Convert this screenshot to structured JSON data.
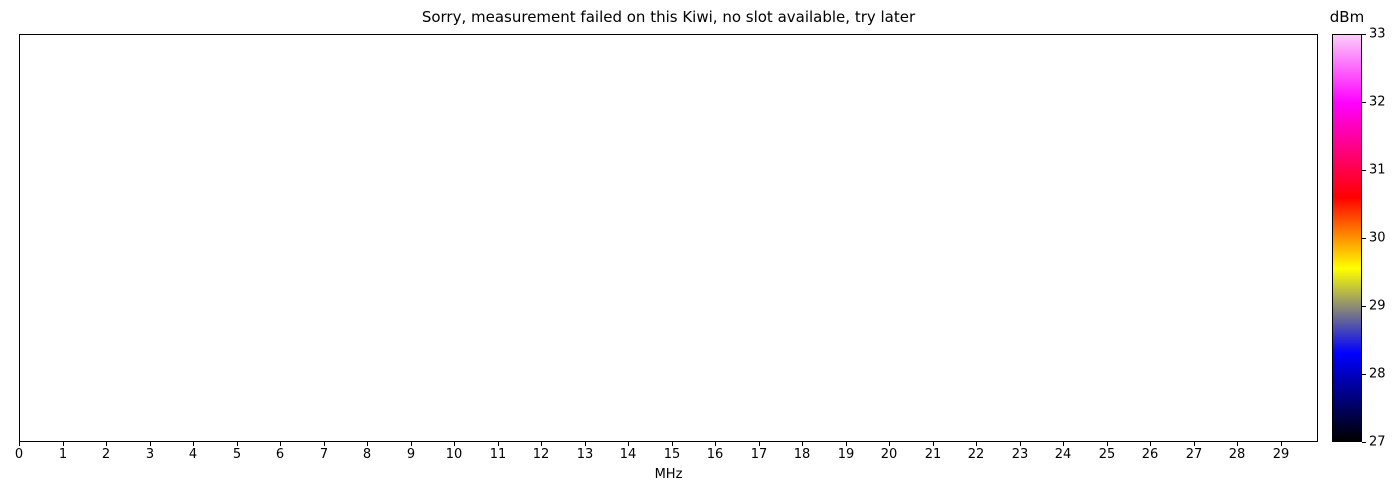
{
  "title": "Sorry, measurement failed on this Kiwi, no slot available, try later",
  "chart_data": {
    "type": "heatmap",
    "status": "empty plot area - measurement failed, no data rendered",
    "xlabel": "MHz",
    "x_ticks": [
      0,
      1,
      2,
      3,
      4,
      5,
      6,
      7,
      8,
      9,
      10,
      11,
      12,
      13,
      14,
      15,
      16,
      17,
      18,
      19,
      20,
      21,
      22,
      23,
      24,
      25,
      26,
      27,
      28,
      29
    ],
    "xlim": [
      0,
      29.85
    ],
    "grid": "off",
    "series": [],
    "colorbar": {
      "label": "dBm",
      "ticks": [
        27,
        28,
        29,
        30,
        31,
        32,
        33
      ],
      "range": [
        27,
        33
      ],
      "orientation": "vertical",
      "position": "right",
      "gradient_stops": [
        {
          "value": 27.0,
          "color": "#000000"
        },
        {
          "value": 28.3,
          "color": "#0000ff"
        },
        {
          "value": 29.55,
          "color": "#ffff00"
        },
        {
          "value": 30.6,
          "color": "#ff0000"
        },
        {
          "value": 32.0,
          "color": "#ff00ff"
        },
        {
          "value": 33.0,
          "color": "#fbccf9"
        }
      ]
    }
  },
  "colors": {
    "background": "#ffffff",
    "axis": "#000000",
    "text": "#000000"
  }
}
